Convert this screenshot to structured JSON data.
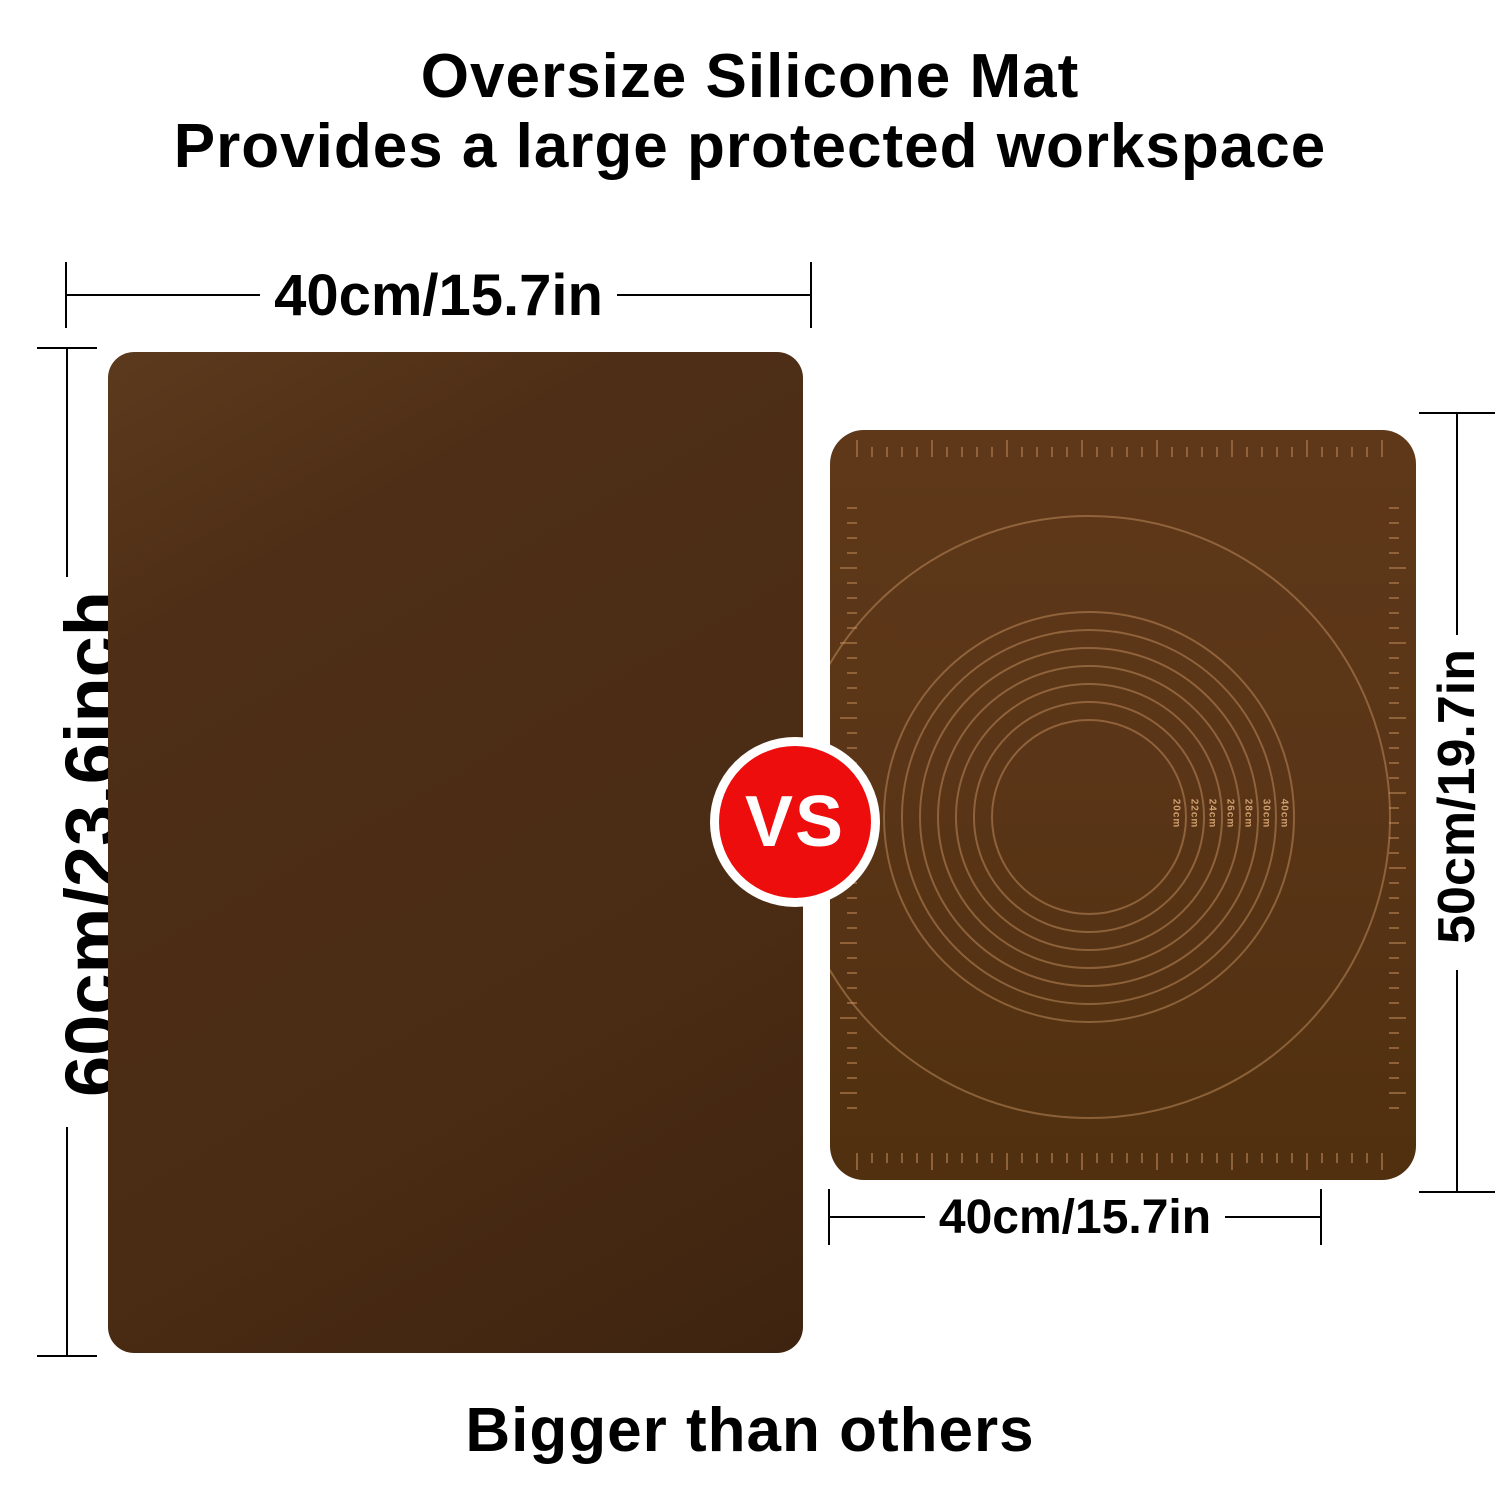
{
  "title": {
    "line1": "Oversize Silicone Mat",
    "line2": "Provides a large protected workspace"
  },
  "footer": "Bigger than others",
  "vs_label": "VS",
  "large_mat": {
    "width_label": "40cm/15.7in",
    "height_label": "60cm/23.6inch"
  },
  "small_mat": {
    "width_label": "40cm/15.7in",
    "height_label": "50cm/19.7in",
    "circle_labels": [
      "20cm",
      "22cm",
      "24cm",
      "26cm",
      "28cm",
      "30cm",
      "40cm"
    ]
  },
  "colors": {
    "large_mat": "#4e2e16",
    "small_mat": "#5a3517",
    "marking": "#9a6a40",
    "vs_red": "#ee0d0d",
    "text": "#000000"
  }
}
